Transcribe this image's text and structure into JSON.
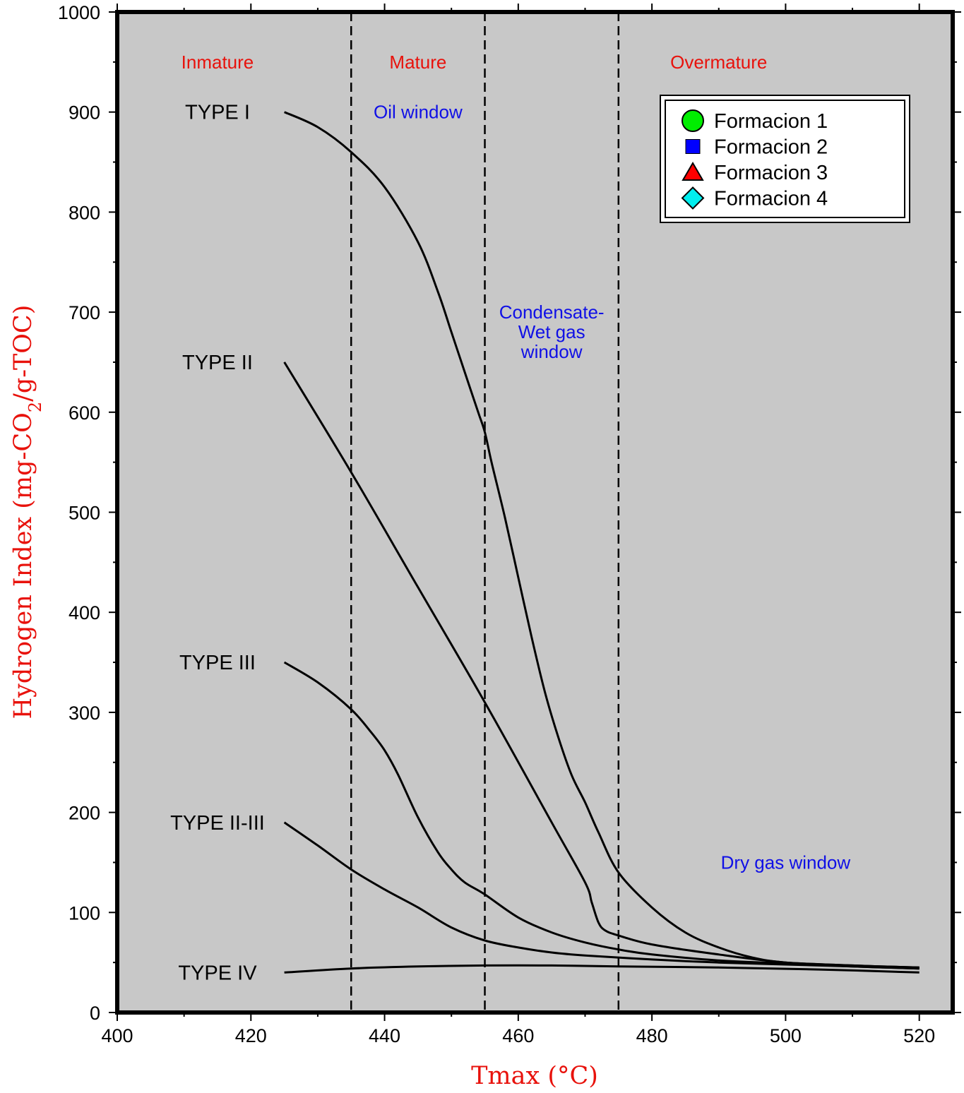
{
  "chart_data": {
    "type": "line",
    "xlabel": "Tmax (°C)",
    "ylabel_parts": [
      "Hydrogen Index (mg-CO",
      "2",
      "/g-TOC)"
    ],
    "xlim": [
      400,
      525
    ],
    "ylim": [
      0,
      1000
    ],
    "xticks": [
      400,
      420,
      440,
      460,
      480,
      500,
      520
    ],
    "yticks": [
      0,
      100,
      200,
      300,
      400,
      500,
      600,
      700,
      800,
      900,
      1000
    ],
    "xminor_step": 10,
    "yminor_step": 50,
    "grid": false,
    "background": "#c8c8c8",
    "boundaries": [
      435,
      455,
      475
    ],
    "zones": [
      {
        "label": "Inmature",
        "x": 415,
        "y": 950
      },
      {
        "label": "Mature",
        "x": 445,
        "y": 950
      },
      {
        "label": "Overmature",
        "x": 490,
        "y": 950
      }
    ],
    "windows": [
      {
        "lines": [
          "Oil window"
        ],
        "x": 445,
        "y": 900
      },
      {
        "lines": [
          "Condensate-",
          "Wet gas",
          "window"
        ],
        "x": 465,
        "y": 700
      },
      {
        "lines": [
          "Dry gas window"
        ],
        "x": 500,
        "y": 150
      }
    ],
    "series": [
      {
        "name": "TYPE I",
        "label_x": 415,
        "label_y": 900,
        "x": [
          425,
          430,
          435,
          440,
          445,
          448,
          450,
          452,
          454,
          455,
          456,
          458,
          460,
          462,
          464,
          466,
          468,
          470,
          472,
          475,
          480,
          485,
          490,
          495,
          500,
          510,
          520
        ],
        "y": [
          900,
          885,
          860,
          825,
          770,
          720,
          680,
          640,
          600,
          580,
          550,
          495,
          435,
          375,
          320,
          275,
          237,
          210,
          180,
          140,
          105,
          80,
          65,
          55,
          50,
          47,
          45
        ]
      },
      {
        "name": "TYPE II",
        "label_x": 415,
        "label_y": 650,
        "x": [
          425,
          435,
          445,
          455,
          465,
          470,
          471,
          472,
          473,
          475,
          480,
          490,
          500,
          510,
          520
        ],
        "y": [
          650,
          540,
          425,
          310,
          190,
          130,
          110,
          90,
          82,
          77,
          68,
          58,
          50,
          47,
          45
        ]
      },
      {
        "name": "TYPE III",
        "label_x": 415,
        "label_y": 350,
        "x": [
          425,
          430,
          435,
          438,
          440,
          442,
          445,
          448,
          450,
          452,
          455,
          460,
          465,
          470,
          475,
          480,
          490,
          500,
          510,
          520
        ],
        "y": [
          350,
          330,
          303,
          280,
          262,
          238,
          195,
          160,
          143,
          130,
          118,
          95,
          80,
          70,
          63,
          58,
          52,
          49,
          46,
          44
        ]
      },
      {
        "name": "TYPE II-III",
        "label_x": 415,
        "label_y": 190,
        "x": [
          425,
          430,
          435,
          440,
          445,
          450,
          455,
          460,
          465,
          470,
          480,
          490,
          500,
          510,
          520
        ],
        "y": [
          190,
          167,
          143,
          123,
          105,
          85,
          72,
          65,
          60,
          57,
          53,
          50,
          48,
          46,
          44
        ]
      },
      {
        "name": "TYPE IV",
        "label_x": 415,
        "label_y": 40,
        "x": [
          425,
          435,
          445,
          455,
          465,
          475,
          490,
          505,
          520
        ],
        "y": [
          40,
          44,
          46,
          47,
          47,
          46,
          45,
          43,
          40
        ]
      }
    ],
    "legend": {
      "position": "top-right",
      "entries": [
        {
          "label": "Formacion 1",
          "marker": "circle",
          "color": "#00ee00"
        },
        {
          "label": "Formacion 2",
          "marker": "square",
          "color": "#0000ff"
        },
        {
          "label": "Formacion 3",
          "marker": "triangle",
          "color": "#ff0000"
        },
        {
          "label": "Formacion 4",
          "marker": "diamond",
          "color": "#00eeee"
        }
      ]
    }
  }
}
